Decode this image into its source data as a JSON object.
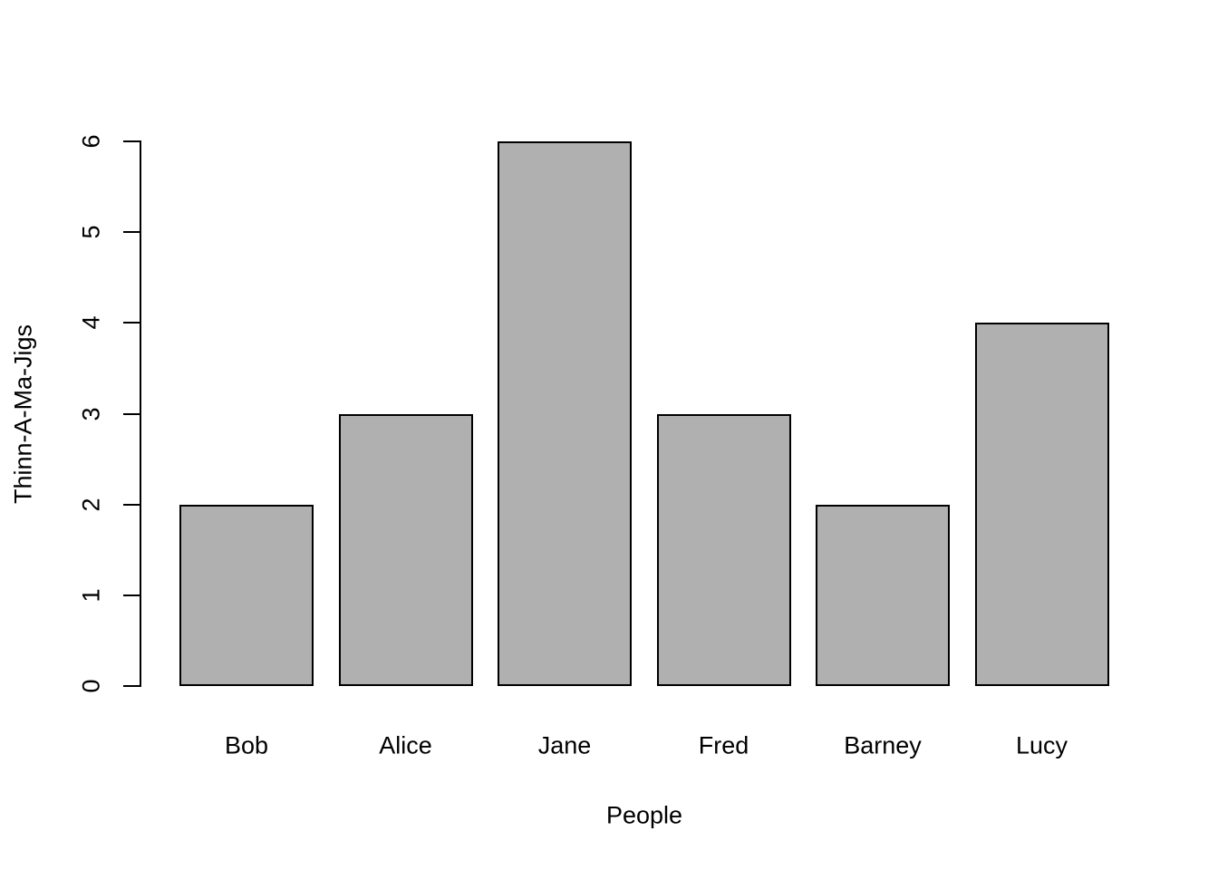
{
  "page": {
    "background_color": "#ffffff",
    "text_color": "#000000"
  },
  "chart_data": {
    "type": "bar",
    "title": "",
    "categories": [
      "Bob",
      "Alice",
      "Jane",
      "Fred",
      "Barney",
      "Lucy"
    ],
    "values": [
      2,
      3,
      6,
      3,
      2,
      4
    ],
    "xlabel": "People",
    "ylabel": "Thinn-A-Ma-Jigs",
    "yticks": [
      "0",
      "1",
      "2",
      "3",
      "4",
      "5",
      "6"
    ],
    "ylim": [
      0,
      6
    ],
    "grid": false,
    "legend_position": "none",
    "bar_fill_color": "#b0b0b0",
    "bar_border_color": "#000000",
    "axis_color": "#000000",
    "tick_label_rotation_deg": 90
  }
}
